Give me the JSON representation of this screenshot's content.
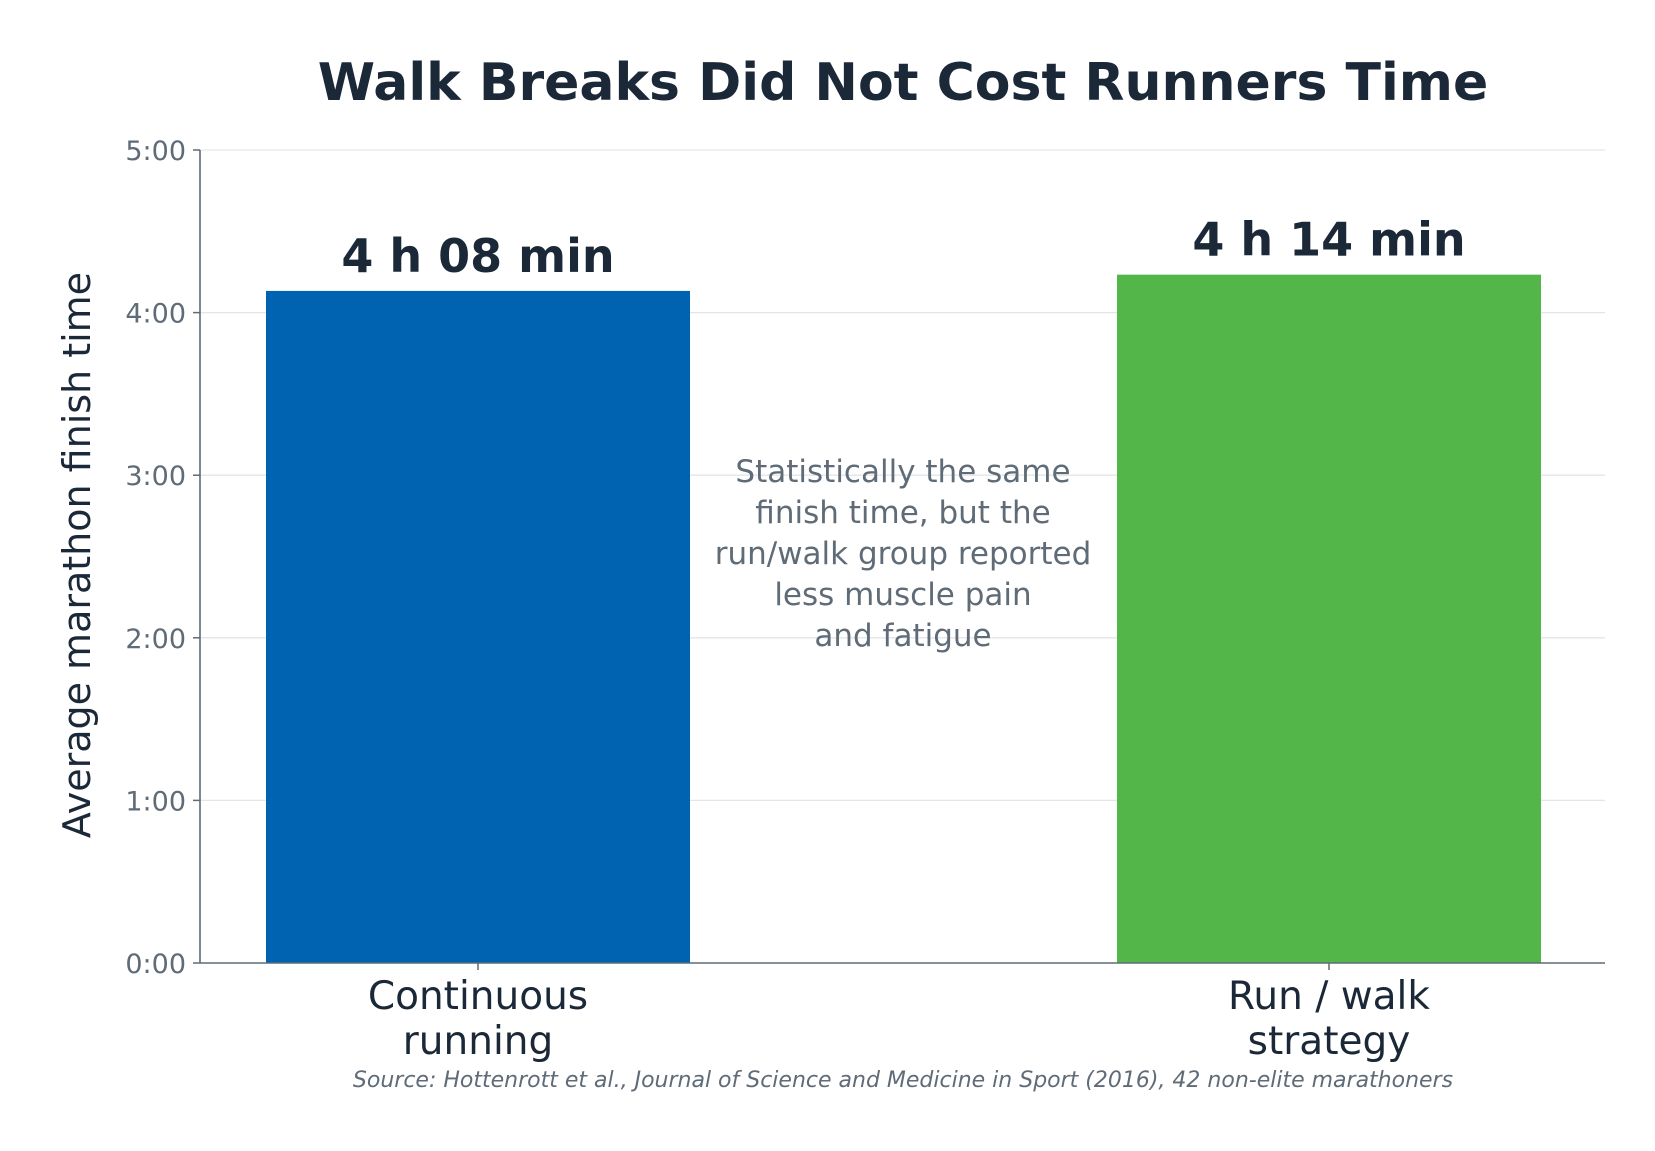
{
  "chart_data": {
    "type": "bar",
    "title": "Walk Breaks Did Not Cost Runners Time",
    "ylabel": "Average marathon finish time",
    "xlabel": "",
    "categories": [
      [
        "Continuous",
        "running"
      ],
      [
        "Run / walk",
        "strategy"
      ]
    ],
    "values_minutes": [
      248,
      254
    ],
    "data_labels": [
      "4 h 08 min",
      "4 h 14 min"
    ],
    "ylim_minutes": [
      0,
      300
    ],
    "yticks": [
      {
        "value": 0,
        "label": "0:00"
      },
      {
        "value": 60,
        "label": "1:00"
      },
      {
        "value": 120,
        "label": "2:00"
      },
      {
        "value": 180,
        "label": "3:00"
      },
      {
        "value": 240,
        "label": "4:00"
      },
      {
        "value": 300,
        "label": "5:00"
      }
    ],
    "colors": [
      "#0063b1",
      "#52b748"
    ],
    "annotation": [
      "Statistically the same",
      "finish time, but the",
      "run/walk group reported",
      "less muscle pain",
      "and fatigue"
    ],
    "source": "Source: Hottenrott et al., Journal of Science and Medicine in Sport (2016), 42 non-elite marathoners",
    "grid": true,
    "legend": "none"
  }
}
